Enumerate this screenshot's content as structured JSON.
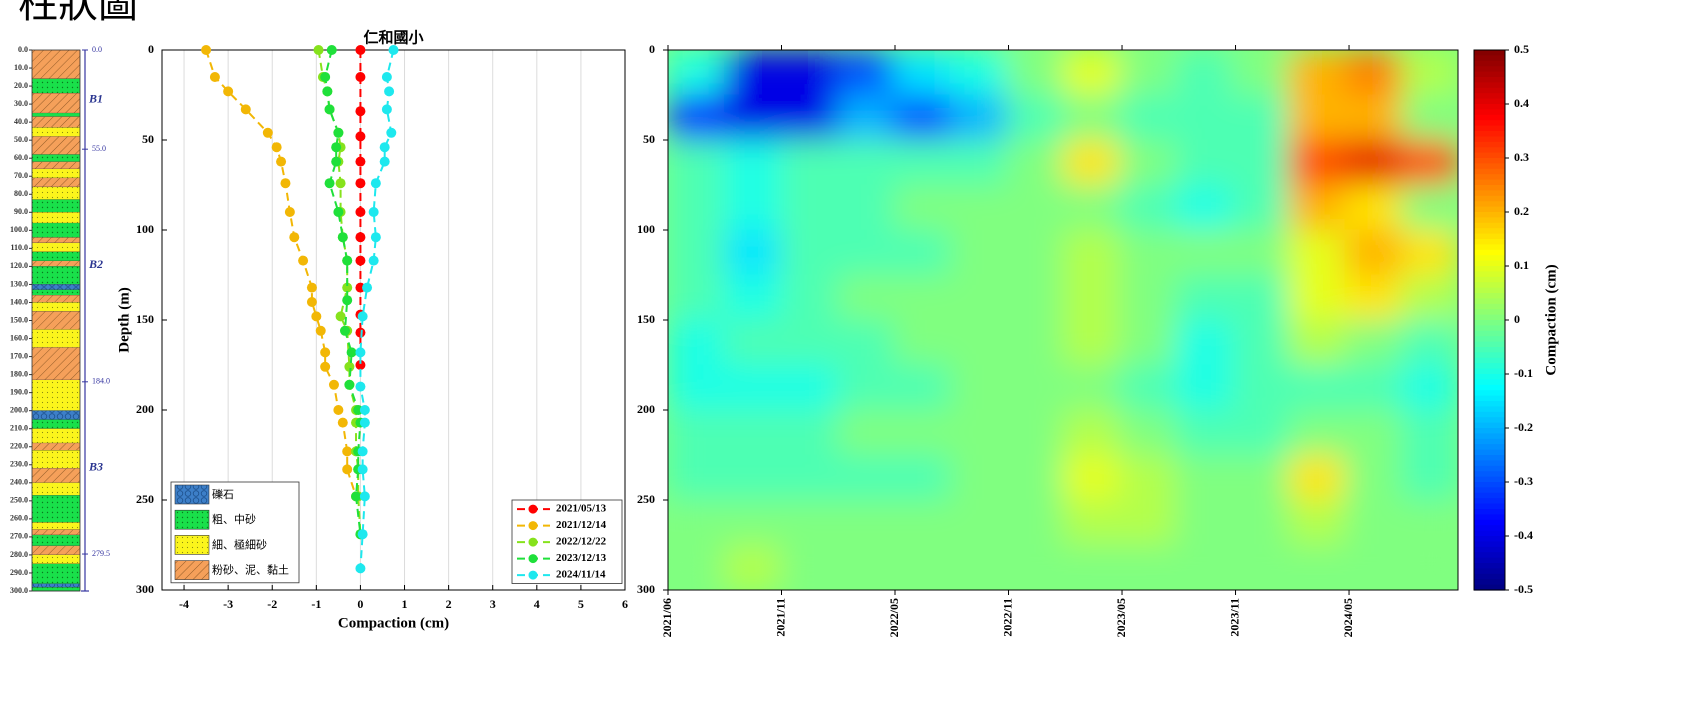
{
  "header": {
    "title": "柱狀圖"
  },
  "chart_data": [
    {
      "type": "strata",
      "ylim": [
        0,
        300
      ],
      "yticks": [
        {
          "value": 0,
          "label": "0.0"
        },
        {
          "value": 10,
          "label": "10.0"
        },
        {
          "value": 20,
          "label": "20.0"
        },
        {
          "value": 30,
          "label": "30.0"
        },
        {
          "value": 40,
          "label": "40.0"
        },
        {
          "value": 50,
          "label": "50.0"
        },
        {
          "value": 60,
          "label": "60.0"
        },
        {
          "value": 70,
          "label": "70.0"
        },
        {
          "value": 80,
          "label": "80.0"
        },
        {
          "value": 90,
          "label": "90.0"
        },
        {
          "value": 100,
          "label": "100.0"
        },
        {
          "value": 110,
          "label": "110.0"
        },
        {
          "value": 120,
          "label": "120.0"
        },
        {
          "value": 130,
          "label": "130.0"
        },
        {
          "value": 140,
          "label": "140.0"
        },
        {
          "value": 150,
          "label": "150.0"
        },
        {
          "value": 160,
          "label": "160.0"
        },
        {
          "value": 170,
          "label": "170.0"
        },
        {
          "value": 180,
          "label": "180.0"
        },
        {
          "value": 190,
          "label": "190.0"
        },
        {
          "value": 200,
          "label": "200.0"
        },
        {
          "value": 210,
          "label": "210.0"
        },
        {
          "value": 220,
          "label": "220.0"
        },
        {
          "value": 230,
          "label": "230.0"
        },
        {
          "value": 240,
          "label": "240.0"
        },
        {
          "value": 250,
          "label": "250.0"
        },
        {
          "value": 260,
          "label": "260.0"
        },
        {
          "value": 270,
          "label": "270.0"
        },
        {
          "value": 280,
          "label": "280.0"
        },
        {
          "value": 290,
          "label": "290.0"
        },
        {
          "value": 300,
          "label": "300.0"
        }
      ],
      "boundaries": [
        {
          "value": 0,
          "label": "0.0"
        },
        {
          "value": 55,
          "label": "55.0"
        },
        {
          "value": 184,
          "label": "184.0"
        },
        {
          "value": 279.5,
          "label": "279.5"
        }
      ],
      "units": [
        "B1",
        "B2",
        "B3"
      ],
      "lithology": [
        {
          "label": "礫石",
          "color": "#3d7fc8"
        },
        {
          "label": "粗、中砂",
          "color": "#19e04a"
        },
        {
          "label": "細、極細砂",
          "color": "#fbf51c"
        },
        {
          "label": "粉砂、泥、黏土",
          "color": "#f5a05a"
        }
      ],
      "layers": [
        {
          "top": 0,
          "bottom": 16,
          "lith": 3
        },
        {
          "top": 16,
          "bottom": 24,
          "lith": 1
        },
        {
          "top": 24,
          "bottom": 35,
          "lith": 3
        },
        {
          "top": 35,
          "bottom": 37,
          "lith": 1
        },
        {
          "top": 37,
          "bottom": 43,
          "lith": 3
        },
        {
          "top": 43,
          "bottom": 48,
          "lith": 2
        },
        {
          "top": 48,
          "bottom": 58,
          "lith": 3
        },
        {
          "top": 58,
          "bottom": 62,
          "lith": 1
        },
        {
          "top": 62,
          "bottom": 66,
          "lith": 3
        },
        {
          "top": 66,
          "bottom": 71,
          "lith": 2
        },
        {
          "top": 71,
          "bottom": 76,
          "lith": 3
        },
        {
          "top": 76,
          "bottom": 83,
          "lith": 2
        },
        {
          "top": 83,
          "bottom": 90,
          "lith": 1
        },
        {
          "top": 90,
          "bottom": 96,
          "lith": 2
        },
        {
          "top": 96,
          "bottom": 104,
          "lith": 1
        },
        {
          "top": 104,
          "bottom": 107,
          "lith": 3
        },
        {
          "top": 107,
          "bottom": 112,
          "lith": 2
        },
        {
          "top": 112,
          "bottom": 117,
          "lith": 1
        },
        {
          "top": 117,
          "bottom": 120,
          "lith": 3
        },
        {
          "top": 120,
          "bottom": 130,
          "lith": 1
        },
        {
          "top": 130,
          "bottom": 133,
          "lith": 0
        },
        {
          "top": 133,
          "bottom": 136,
          "lith": 1
        },
        {
          "top": 136,
          "bottom": 140,
          "lith": 3
        },
        {
          "top": 140,
          "bottom": 145,
          "lith": 2
        },
        {
          "top": 145,
          "bottom": 155,
          "lith": 3
        },
        {
          "top": 155,
          "bottom": 165,
          "lith": 2
        },
        {
          "top": 165,
          "bottom": 183,
          "lith": 3
        },
        {
          "top": 183,
          "bottom": 200,
          "lith": 2
        },
        {
          "top": 200,
          "bottom": 205,
          "lith": 0
        },
        {
          "top": 205,
          "bottom": 210,
          "lith": 1
        },
        {
          "top": 210,
          "bottom": 218,
          "lith": 2
        },
        {
          "top": 218,
          "bottom": 222,
          "lith": 3
        },
        {
          "top": 222,
          "bottom": 232,
          "lith": 2
        },
        {
          "top": 232,
          "bottom": 240,
          "lith": 3
        },
        {
          "top": 240,
          "bottom": 247,
          "lith": 2
        },
        {
          "top": 247,
          "bottom": 262,
          "lith": 1
        },
        {
          "top": 262,
          "bottom": 266,
          "lith": 2
        },
        {
          "top": 266,
          "bottom": 269,
          "lith": 3
        },
        {
          "top": 269,
          "bottom": 275,
          "lith": 1
        },
        {
          "top": 275,
          "bottom": 280,
          "lith": 3
        },
        {
          "top": 280,
          "bottom": 285,
          "lith": 2
        },
        {
          "top": 285,
          "bottom": 296,
          "lith": 1
        },
        {
          "top": 296,
          "bottom": 298,
          "lith": 0
        },
        {
          "top": 298,
          "bottom": 300,
          "lith": 1
        }
      ]
    },
    {
      "type": "line",
      "title": "仁和國小",
      "xlabel": "Compaction (cm)",
      "ylabel": "Depth (m)",
      "xlim": [
        -4.5,
        6
      ],
      "xticks": [
        -4,
        -3,
        -2,
        -1,
        0,
        1,
        2,
        3,
        4,
        5,
        6
      ],
      "ylim": [
        0,
        300
      ],
      "yticks": [
        0,
        50,
        100,
        150,
        200,
        250,
        300
      ],
      "invert_y": true,
      "grid": true,
      "series": [
        {
          "name": "2021/05/13",
          "color": "#ff0000",
          "x": [
            0,
            0,
            0,
            0,
            0,
            0,
            0,
            0,
            0,
            0,
            0,
            0,
            0
          ],
          "y": [
            0,
            15,
            34,
            48,
            62,
            74,
            90,
            104,
            117,
            132,
            147,
            157,
            175
          ]
        },
        {
          "name": "2021/12/14",
          "color": "#f2b705",
          "x": [
            -3.5,
            -3.3,
            -3.0,
            -2.6,
            -2.1,
            -1.9,
            -1.8,
            -1.7,
            -1.6,
            -1.5,
            -1.3,
            -1.1,
            -1.1,
            -1.0,
            -0.9,
            -0.8,
            -0.8,
            -0.6,
            -0.5,
            -0.4,
            -0.3,
            -0.3,
            -0.1
          ],
          "y": [
            0,
            15,
            23,
            33,
            46,
            54,
            62,
            74,
            90,
            104,
            117,
            132,
            140,
            148,
            156,
            168,
            176,
            186,
            200,
            207,
            223,
            233,
            248
          ]
        },
        {
          "name": "2022/12/22",
          "color": "#86e21c",
          "x": [
            -0.95,
            -0.85,
            -0.75,
            -0.7,
            -0.5,
            -0.45,
            -0.5,
            -0.45,
            -0.45,
            -0.4,
            -0.3,
            -0.3,
            -0.45,
            -0.3,
            -0.25,
            -0.25,
            -0.1,
            -0.1,
            -0.1,
            -0.05,
            -0.05,
            0
          ],
          "y": [
            0,
            15,
            23,
            33,
            46,
            54,
            62,
            74,
            90,
            104,
            117,
            132,
            148,
            156,
            176,
            186,
            200,
            207,
            223,
            233,
            248,
            269
          ]
        },
        {
          "name": "2023/12/13",
          "color": "#1fe03a",
          "x": [
            -0.65,
            -0.8,
            -0.75,
            -0.7,
            -0.5,
            -0.55,
            -0.55,
            -0.7,
            -0.5,
            -0.4,
            -0.3,
            -0.3,
            -0.35,
            -0.2,
            -0.25,
            -0.05,
            0,
            -0.05,
            -0.05,
            -0.1,
            0
          ],
          "y": [
            0,
            15,
            23,
            33,
            46,
            54,
            62,
            74,
            90,
            104,
            117,
            139,
            156,
            168,
            186,
            200,
            207,
            223,
            233,
            248,
            269
          ]
        },
        {
          "name": "2024/11/14",
          "color": "#1ee8ee",
          "x": [
            0.75,
            0.6,
            0.65,
            0.6,
            0.7,
            0.55,
            0.55,
            0.35,
            0.3,
            0.35,
            0.3,
            0.15,
            0.05,
            0,
            0,
            0.1,
            0.1,
            0.05,
            0.05,
            0.1,
            0.05,
            0
          ],
          "y": [
            0,
            15,
            23,
            33,
            46,
            54,
            62,
            74,
            90,
            104,
            117,
            132,
            148,
            168,
            187,
            200,
            207,
            223,
            233,
            248,
            269,
            288
          ]
        }
      ]
    },
    {
      "type": "heatmap",
      "xticks": [
        "2021/06",
        "2021/11",
        "2022/05",
        "2022/11",
        "2023/05",
        "2023/11",
        "2024/05"
      ],
      "ylim": [
        0,
        300
      ],
      "yticks": [
        0,
        50,
        100,
        150,
        200,
        250,
        300
      ],
      "invert_y": true,
      "ybins": [
        0,
        25,
        50,
        75,
        100,
        125,
        150,
        175,
        200,
        225,
        250,
        275,
        300
      ],
      "values": [
        [
          -0.1,
          -0.4,
          -0.4,
          -0.3,
          -0.15,
          -0.1,
          0,
          0.1,
          0,
          -0.05,
          0,
          0.2,
          0.25,
          0.05
        ],
        [
          -0.35,
          -0.4,
          -0.4,
          -0.2,
          -0.3,
          -0.2,
          -0.05,
          0,
          -0.05,
          -0.05,
          -0.05,
          0.2,
          0.2,
          0
        ],
        [
          -0.05,
          -0.1,
          -0.05,
          -0.05,
          -0.05,
          -0.05,
          0,
          0.15,
          0,
          -0.05,
          -0.05,
          0.3,
          0.4,
          0.3
        ],
        [
          -0.05,
          -0.1,
          -0.05,
          -0.05,
          0,
          0,
          0,
          0,
          -0.05,
          -0.1,
          -0.05,
          0.2,
          0.15,
          0
        ],
        [
          -0.05,
          -0.15,
          -0.05,
          -0.05,
          -0.05,
          0,
          0,
          0.05,
          0,
          0,
          0,
          0.1,
          0.2,
          0.15
        ],
        [
          -0.05,
          -0.1,
          -0.05,
          0,
          0,
          0,
          0,
          0.05,
          0,
          -0.05,
          -0.05,
          0.1,
          0.15,
          0.05
        ],
        [
          -0.1,
          -0.05,
          -0.05,
          -0.05,
          0,
          0,
          0,
          0.05,
          0,
          -0.1,
          -0.05,
          0.05,
          0,
          -0.05
        ],
        [
          -0.1,
          -0.1,
          -0.1,
          -0.05,
          -0.05,
          0,
          0,
          0,
          -0.05,
          -0.1,
          -0.05,
          -0.05,
          -0.05,
          -0.1
        ],
        [
          -0.05,
          -0.05,
          -0.05,
          0,
          0,
          0,
          0,
          0.05,
          0,
          -0.05,
          -0.05,
          0,
          0,
          -0.05
        ],
        [
          -0.05,
          -0.05,
          -0.05,
          -0.05,
          -0.05,
          0,
          0,
          0.1,
          0.05,
          0,
          0,
          0.15,
          0,
          -0.05
        ],
        [
          0,
          0,
          0,
          0,
          0,
          0,
          0,
          0.05,
          0.05,
          0,
          0,
          0.05,
          0,
          0
        ],
        [
          0,
          0.05,
          0,
          0,
          0,
          0,
          0,
          0,
          0,
          0,
          0,
          0,
          0,
          0
        ]
      ],
      "colormap": "jet",
      "clim": [
        -0.5,
        0.5
      ],
      "cticks": [
        0.5,
        0.4,
        0.3,
        0.2,
        0.1,
        0,
        -0.1,
        -0.2,
        -0.3,
        -0.4,
        -0.5
      ],
      "clabel": "Compaction (cm)"
    }
  ]
}
